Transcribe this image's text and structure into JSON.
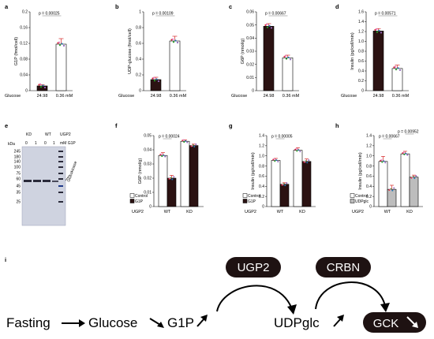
{
  "panel_letters": [
    "a",
    "b",
    "c",
    "d",
    "e",
    "f",
    "g",
    "h",
    "i"
  ],
  "colors": {
    "dark_bar": "#2b1212",
    "light_bar": "#ffffff",
    "gray_bar": "#bdbdbd",
    "pill": "#1e1212",
    "blot_bg": "#cfd3e0",
    "dots": [
      "#d62728",
      "#2ca02c",
      "#1f77b4",
      "#9467bd",
      "#e377c2",
      "#17becf"
    ]
  },
  "chart_data": [
    {
      "id": "a",
      "type": "bar",
      "ylabel": "G1P (fmol/cell)",
      "xlabel": "Glucose",
      "categories": [
        "24.98",
        "0.36 mM"
      ],
      "values": [
        0.012,
        0.118
      ],
      "errors": [
        0.003,
        0.014
      ],
      "bar_colors": [
        "#2b1212",
        "#ffffff"
      ],
      "ylim": [
        0,
        0.2
      ],
      "yticks": [
        "0",
        "0.04",
        "0.08",
        "0.12",
        "0.16",
        "0.2"
      ],
      "pvalue": "p = 0.00025"
    },
    {
      "id": "b",
      "type": "bar",
      "ylabel": "UDP-glucose (fmol/cell)",
      "xlabel": "Glucose",
      "categories": [
        "24.98",
        "0.36 mM"
      ],
      "values": [
        0.14,
        0.63
      ],
      "errors": [
        0.03,
        0.06
      ],
      "bar_colors": [
        "#2b1212",
        "#ffffff"
      ],
      "ylim": [
        0,
        1
      ],
      "yticks": [
        "0",
        "0.2",
        "0.4",
        "0.6",
        "0.8",
        "1"
      ],
      "pvalue": "p = 0.00109"
    },
    {
      "id": "c",
      "type": "bar",
      "ylabel": "G6P (nmol/g)",
      "xlabel": "Glucose",
      "categories": [
        "24.98",
        "0.36 mM"
      ],
      "values": [
        0.049,
        0.025
      ],
      "errors": [
        0.002,
        0.002
      ],
      "bar_colors": [
        "#2b1212",
        "#ffffff"
      ],
      "ylim": [
        0,
        0.06
      ],
      "yticks": [
        "0",
        "0.01",
        "0.02",
        "0.03",
        "0.04",
        "0.05",
        "0.06"
      ],
      "pvalue": "p = 0.00667"
    },
    {
      "id": "d",
      "type": "bar",
      "ylabel": "Insulin (pg/cell/min)",
      "xlabel": "Glucose",
      "categories": [
        "24.98",
        "0.36 mM"
      ],
      "values": [
        1.21,
        0.45
      ],
      "errors": [
        0.05,
        0.07
      ],
      "bar_colors": [
        "#2b1212",
        "#ffffff"
      ],
      "ylim": [
        0,
        1.6
      ],
      "yticks": [
        "0",
        "0.2",
        "0.4",
        "0.6",
        "0.8",
        "1.0",
        "1.2",
        "1.4",
        "1.6"
      ],
      "pvalue": "p = 0.00571"
    },
    {
      "id": "f",
      "type": "bar",
      "ylabel": "G6P (nmol/g)",
      "xlabel": "UGP2",
      "groups": [
        "WT",
        "KD"
      ],
      "series": [
        {
          "name": "Control",
          "values": [
            0.036,
            0.046
          ],
          "errors": [
            0.002,
            0.001
          ],
          "color": "#ffffff"
        },
        {
          "name": "G1P",
          "values": [
            0.02,
            0.043
          ],
          "errors": [
            0.002,
            0.001
          ],
          "color": "#2b1212"
        }
      ],
      "ylim": [
        0,
        0.05
      ],
      "yticks": [
        "0",
        "0.01",
        "0.02",
        "0.03",
        "0.04",
        "0.05"
      ],
      "pvalue": "p = 0.00024"
    },
    {
      "id": "g",
      "type": "bar",
      "ylabel": "Insulin (pg/cell/min)",
      "xlabel": "UGP2",
      "groups": [
        "WT",
        "KD"
      ],
      "series": [
        {
          "name": "Control",
          "values": [
            0.91,
            1.11
          ],
          "errors": [
            0.04,
            0.05
          ],
          "color": "#ffffff"
        },
        {
          "name": "G1P",
          "values": [
            0.44,
            0.89
          ],
          "errors": [
            0.03,
            0.05
          ],
          "color": "#2b1212"
        }
      ],
      "ylim": [
        0,
        1.4
      ],
      "yticks": [
        "0",
        "0.2",
        "0.4",
        "0.6",
        "0.8",
        "1.0",
        "1.2",
        "1.4"
      ],
      "pvalue": "p = 0.00005"
    },
    {
      "id": "h",
      "type": "bar",
      "ylabel": "Insulin (pg/cell/min)",
      "xlabel": "UGP2",
      "groups": [
        "WT",
        "KD"
      ],
      "series": [
        {
          "name": "Control",
          "values": [
            0.89,
            1.04
          ],
          "errors": [
            0.1,
            0.05
          ],
          "color": "#ffffff"
        },
        {
          "name": "UDPglc",
          "values": [
            0.34,
            0.58
          ],
          "errors": [
            0.08,
            0.04
          ],
          "color": "#bdbdbd"
        }
      ],
      "ylim": [
        0,
        1.4
      ],
      "yticks": [
        "0",
        "0.2",
        "0.4",
        "0.6",
        "0.8",
        "1.0",
        "1.2",
        "1.4"
      ],
      "pvalue": "p = 0.00667",
      "pvalue2": "p = 0.00952"
    }
  ],
  "blot": {
    "kda_label": "kDa",
    "markers": [
      "245",
      "180",
      "140",
      "100",
      "75",
      "60",
      "45",
      "35",
      "25"
    ],
    "lane_groups": [
      "KD",
      "WT",
      "UGP2"
    ],
    "lane_values": [
      "0",
      "1",
      "0",
      "1"
    ],
    "lane_unit": "mM G1P",
    "band_label": "Glucokinase"
  },
  "pathway": {
    "fasting": "Fasting",
    "glucose": "Glucose",
    "g1p": "G1P",
    "udpglc": "UDPglc",
    "ugp2": "UGP2",
    "crbn": "CRBN",
    "gck": "GCK"
  }
}
